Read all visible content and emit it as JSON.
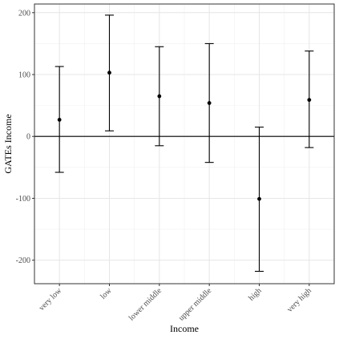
{
  "chart_data": {
    "type": "errorbar",
    "title": "",
    "xlabel": "Income",
    "ylabel": "GATEs Income",
    "categories": [
      "very low",
      "low",
      "lower middle",
      "upper middle",
      "high",
      "very high"
    ],
    "series": [
      {
        "estimate": [
          27,
          103,
          65,
          54,
          -101,
          59
        ],
        "lower": [
          -58,
          9,
          -15,
          -42,
          -218,
          -18
        ],
        "upper": [
          113,
          196,
          145,
          150,
          15,
          138
        ]
      }
    ],
    "ylim": [
      -238,
      214
    ],
    "yticks": [
      -200,
      -100,
      0,
      100,
      200
    ],
    "reference_line_y": 0,
    "grid": true,
    "legend": "none"
  }
}
